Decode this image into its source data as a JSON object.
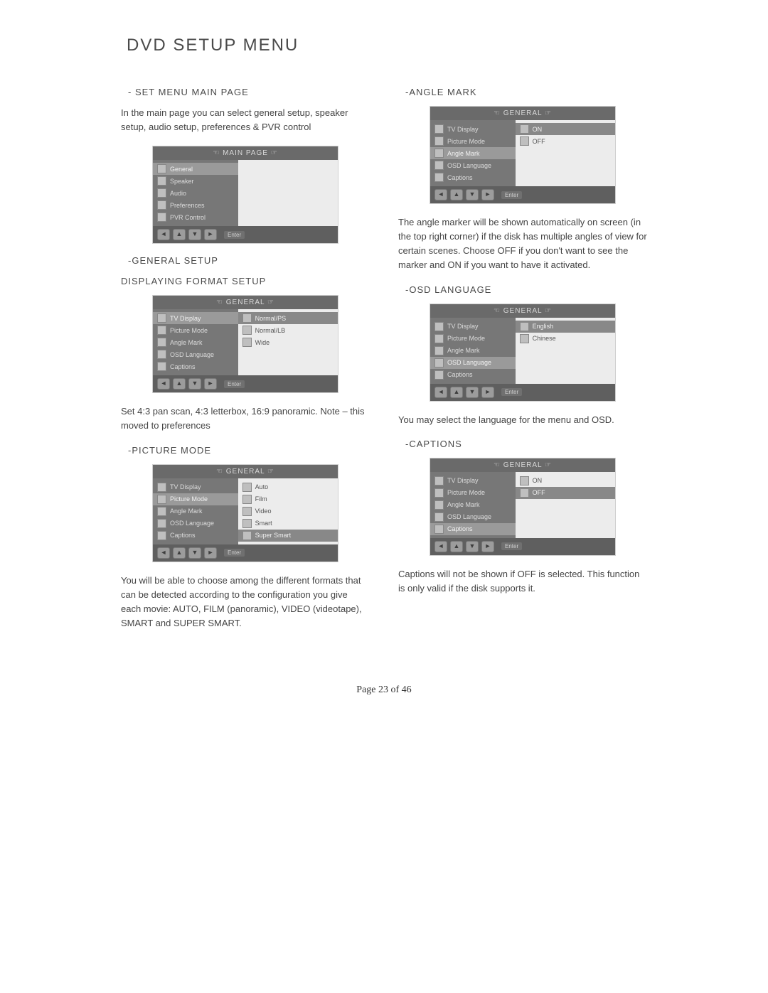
{
  "title": "DVD SETUP MENU",
  "page_number": "Page 23 of 46",
  "nav": {
    "left": "◄",
    "up": "▲",
    "down": "▼",
    "right": "►",
    "enter": "Enter"
  },
  "left_column": {
    "set_menu": {
      "heading": "- SET MENU MAIN PAGE",
      "text": "In the main page you can select general setup, speaker setup, audio setup, preferences & PVR control",
      "shot": {
        "header": "☜  MAIN PAGE  ☞",
        "left_items": [
          {
            "label": "General",
            "hl": true
          },
          {
            "label": "Speaker"
          },
          {
            "label": "Audio"
          },
          {
            "label": "Preferences"
          },
          {
            "label": "PVR Control"
          }
        ],
        "right_items": []
      }
    },
    "general_setup": {
      "heading": "-GENERAL SETUP",
      "sub_heading": "DISPLAYING FORMAT SETUP",
      "shot": {
        "header": "☜  GENERAL  ☞",
        "left_items": [
          {
            "label": "TV Display",
            "hl": true
          },
          {
            "label": "Picture Mode"
          },
          {
            "label": "Angle Mark"
          },
          {
            "label": "OSD Language"
          },
          {
            "label": "Captions"
          }
        ],
        "right_items": [
          {
            "label": "Normal/PS",
            "hl": true
          },
          {
            "label": "Normal/LB"
          },
          {
            "label": "Wide"
          }
        ]
      },
      "text": "Set 4:3 pan scan, 4:3 letterbox, 16:9 panoramic.\nNote – this moved to preferences"
    },
    "picture_mode": {
      "heading": "-PICTURE MODE",
      "shot": {
        "header": "☜  GENERAL  ☞",
        "left_items": [
          {
            "label": "TV Display"
          },
          {
            "label": "Picture Mode",
            "hl": true
          },
          {
            "label": "Angle Mark"
          },
          {
            "label": "OSD Language"
          },
          {
            "label": "Captions"
          }
        ],
        "right_items": [
          {
            "label": "Auto"
          },
          {
            "label": "Film"
          },
          {
            "label": "Video"
          },
          {
            "label": "Smart"
          },
          {
            "label": "Super Smart",
            "hl": true
          }
        ]
      },
      "text": "You will be able to choose among the different formats that can be detected according to the configuration you give each movie: AUTO, FILM (panoramic), VIDEO (videotape), SMART and SUPER SMART."
    }
  },
  "right_column": {
    "angle_mark": {
      "heading": "-ANGLE MARK",
      "shot": {
        "header": "☜  GENERAL  ☞",
        "left_items": [
          {
            "label": "TV Display"
          },
          {
            "label": "Picture Mode"
          },
          {
            "label": "Angle Mark",
            "hl": true
          },
          {
            "label": "OSD Language"
          },
          {
            "label": "Captions"
          }
        ],
        "right_items": [
          {
            "label": "ON",
            "hl": true
          },
          {
            "label": "OFF"
          }
        ]
      },
      "text": "The angle marker will be shown automatically on screen (in the top right corner) if the disk has multiple angles of view for certain scenes. Choose OFF if you don't want to see the marker and ON if you want to have it activated."
    },
    "osd_language": {
      "heading": "-OSD LANGUAGE",
      "shot": {
        "header": "☜  GENERAL  ☞",
        "left_items": [
          {
            "label": "TV Display"
          },
          {
            "label": "Picture Mode"
          },
          {
            "label": "Angle Mark"
          },
          {
            "label": "OSD Language",
            "hl": true
          },
          {
            "label": "Captions"
          }
        ],
        "right_items": [
          {
            "label": "English",
            "hl": true
          },
          {
            "label": "Chinese"
          }
        ]
      },
      "text": "You may select the language for the menu and OSD."
    },
    "captions": {
      "heading": "-CAPTIONS",
      "shot": {
        "header": "☜  GENERAL  ☞",
        "left_items": [
          {
            "label": "TV Display"
          },
          {
            "label": "Picture Mode"
          },
          {
            "label": "Angle Mark"
          },
          {
            "label": "OSD Language"
          },
          {
            "label": "Captions",
            "hl": true
          }
        ],
        "right_items": [
          {
            "label": "ON"
          },
          {
            "label": "OFF",
            "hl": true
          }
        ]
      },
      "text": "Captions will not be shown if OFF is selected. This function is only valid if the disk supports it."
    }
  }
}
